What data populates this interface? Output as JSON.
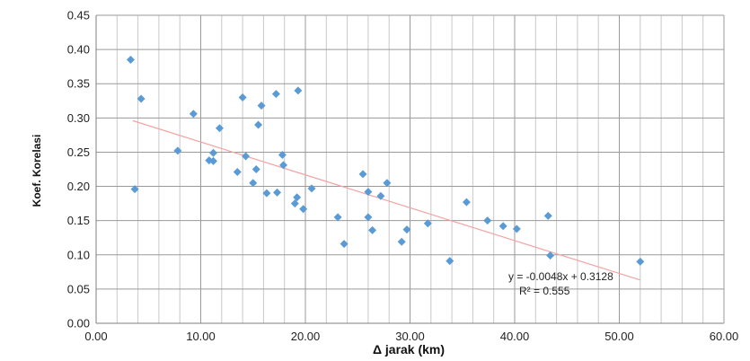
{
  "chart_data": {
    "type": "scatter",
    "title": "",
    "xlabel": "Δ jarak (km)",
    "ylabel": "Koef. Korelasi",
    "xlim": [
      0,
      60
    ],
    "ylim": [
      0,
      0.45
    ],
    "x_ticks": [
      "0.00",
      "10.00",
      "20.00",
      "30.00",
      "40.00",
      "50.00",
      "60.00"
    ],
    "y_ticks": [
      "0.00",
      "0.05",
      "0.10",
      "0.15",
      "0.20",
      "0.25",
      "0.30",
      "0.35",
      "0.40",
      "0.45"
    ],
    "grid": "on",
    "marker_color": "#5b9bd5",
    "trendline_color": "#f4a3a3",
    "series": [
      {
        "points": [
          [
            3.3,
            0.385
          ],
          [
            3.7,
            0.196
          ],
          [
            4.3,
            0.328
          ],
          [
            7.8,
            0.252
          ],
          [
            9.3,
            0.306
          ],
          [
            10.8,
            0.238
          ],
          [
            11.2,
            0.237
          ],
          [
            11.2,
            0.249
          ],
          [
            11.8,
            0.285
          ],
          [
            13.5,
            0.221
          ],
          [
            14.0,
            0.33
          ],
          [
            14.3,
            0.244
          ],
          [
            15.0,
            0.205
          ],
          [
            15.3,
            0.225
          ],
          [
            15.5,
            0.29
          ],
          [
            15.8,
            0.318
          ],
          [
            16.3,
            0.19
          ],
          [
            17.2,
            0.335
          ],
          [
            17.3,
            0.191
          ],
          [
            17.8,
            0.246
          ],
          [
            17.9,
            0.231
          ],
          [
            19.0,
            0.175
          ],
          [
            19.2,
            0.184
          ],
          [
            19.3,
            0.34
          ],
          [
            19.8,
            0.167
          ],
          [
            20.6,
            0.197
          ],
          [
            23.1,
            0.155
          ],
          [
            23.7,
            0.116
          ],
          [
            25.5,
            0.218
          ],
          [
            26.0,
            0.192
          ],
          [
            26.0,
            0.155
          ],
          [
            26.4,
            0.136
          ],
          [
            27.2,
            0.186
          ],
          [
            27.8,
            0.205
          ],
          [
            29.2,
            0.119
          ],
          [
            29.7,
            0.137
          ],
          [
            31.7,
            0.146
          ],
          [
            33.8,
            0.091
          ],
          [
            35.4,
            0.177
          ],
          [
            37.4,
            0.15
          ],
          [
            38.9,
            0.142
          ],
          [
            40.2,
            0.138
          ],
          [
            43.2,
            0.157
          ],
          [
            43.4,
            0.099
          ],
          [
            52.0,
            0.09
          ]
        ]
      }
    ],
    "trendline": {
      "slope": -0.0048,
      "intercept": 0.3128,
      "x_start": 3.5,
      "x_end": 52.0,
      "equation": "y = -0.0048x + 0.3128",
      "r_squared": "R² = 0.555"
    }
  }
}
